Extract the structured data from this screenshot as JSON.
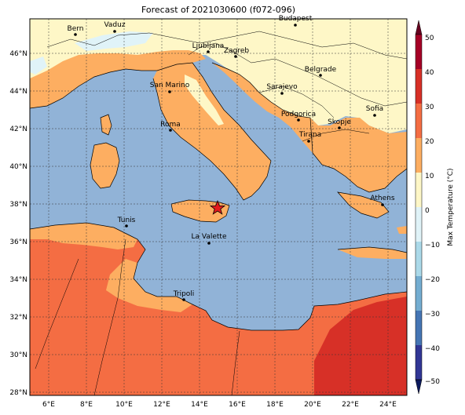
{
  "title": "Forecast of 2021030600 (f072-096)",
  "colorbar": {
    "label": "Max Temperature (°C)",
    "ticks": [
      "50",
      "40",
      "30",
      "20",
      "10",
      "0",
      "−10",
      "−20",
      "−30",
      "−40",
      "−50"
    ],
    "levels": [
      {
        "from": 40,
        "to": 50,
        "color": "#a50026"
      },
      {
        "from": 30,
        "to": 40,
        "color": "#d73027"
      },
      {
        "from": 20,
        "to": 30,
        "color": "#f46d43"
      },
      {
        "from": 10,
        "to": 20,
        "color": "#fdae61"
      },
      {
        "from": 0,
        "to": 10,
        "color": "#fef7c7"
      },
      {
        "from": -10,
        "to": 0,
        "color": "#e0f3f8"
      },
      {
        "from": -20,
        "to": -10,
        "color": "#abd9e9"
      },
      {
        "from": -30,
        "to": -20,
        "color": "#74add1"
      },
      {
        "from": -40,
        "to": -30,
        "color": "#4575b4"
      },
      {
        "from": -50,
        "to": -40,
        "color": "#313695"
      }
    ]
  },
  "axes": {
    "lon_labels": [
      "6°E",
      "8°E",
      "10°E",
      "12°E",
      "14°E",
      "16°E",
      "18°E",
      "20°E",
      "22°E",
      "24°E"
    ],
    "lat_labels": [
      "46°N",
      "44°N",
      "42°N",
      "40°N",
      "38°N",
      "36°N",
      "34°N",
      "32°N",
      "30°N",
      "28°N"
    ]
  },
  "cities": [
    {
      "name": "Bern"
    },
    {
      "name": "Vaduz"
    },
    {
      "name": "Budapest"
    },
    {
      "name": "Ljubljana"
    },
    {
      "name": "Zagreb"
    },
    {
      "name": "Belgrade"
    },
    {
      "name": "San Marino"
    },
    {
      "name": "Sarajevo"
    },
    {
      "name": "Sofia"
    },
    {
      "name": "Podgorica"
    },
    {
      "name": "Skopje"
    },
    {
      "name": "Roma"
    },
    {
      "name": "Tirana"
    },
    {
      "name": "Athens"
    },
    {
      "name": "Tunis"
    },
    {
      "name": "La Valette"
    },
    {
      "name": "Tripoli"
    }
  ],
  "marker": {
    "type": "red-star"
  },
  "colors": {
    "sea": "#91b3d7",
    "cold_land": "#fef7c7",
    "warm_land": "#fdae61",
    "hot_land": "#f46d43",
    "very_hot": "#d73027",
    "snow": "#e0f3f8"
  }
}
